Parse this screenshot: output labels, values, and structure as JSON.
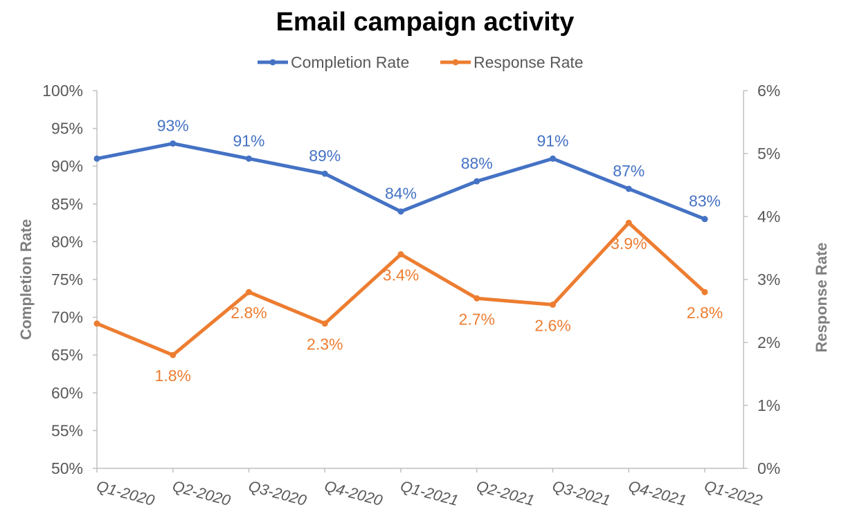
{
  "chart_data": {
    "type": "line",
    "title": "Email campaign activity",
    "categories": [
      "Q1-2020",
      "Q2-2020",
      "Q3-2020",
      "Q4-2020",
      "Q1-2021",
      "Q2-2021",
      "Q3-2021",
      "Q4-2021",
      "Q1-2022"
    ],
    "y_left": {
      "label": "Completion Rate",
      "ylim": [
        50,
        100
      ],
      "step": 5,
      "ticks": [
        "100%",
        "95%",
        "90%",
        "85%",
        "80%",
        "75%",
        "70%",
        "65%",
        "60%",
        "55%",
        "50%"
      ]
    },
    "y_right": {
      "label": "Response Rate",
      "ylim": [
        0,
        6
      ],
      "step": 1,
      "ticks": [
        "6%",
        "5%",
        "4%",
        "3%",
        "2%",
        "1%",
        "0%"
      ]
    },
    "series": [
      {
        "name": "Completion Rate",
        "axis": "left",
        "color": "#4472C4",
        "values": [
          91,
          93,
          91,
          89,
          84,
          88,
          91,
          87,
          83
        ],
        "labels": [
          "",
          "93%",
          "91%",
          "89%",
          "84%",
          "88%",
          "91%",
          "87%",
          "83%"
        ]
      },
      {
        "name": "Response Rate",
        "axis": "right",
        "color": "#ED7D31",
        "values": [
          2.3,
          1.8,
          2.8,
          2.3,
          3.4,
          2.7,
          2.6,
          3.9,
          2.8
        ],
        "labels": [
          "",
          "1.8%",
          "2.8%",
          "2.3%",
          "3.4%",
          "2.7%",
          "2.6%",
          "3.9%",
          "2.8%"
        ]
      }
    ],
    "legend": "top"
  }
}
